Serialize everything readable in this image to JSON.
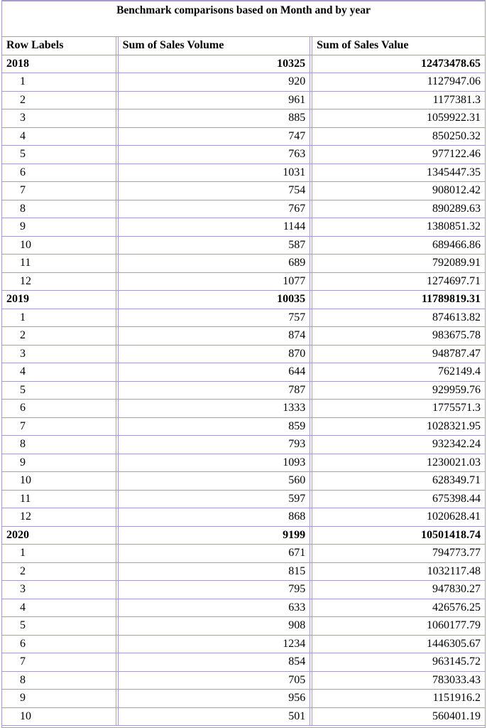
{
  "title": "Benchmark comparisons based on Month and by year",
  "headers": [
    "Row Labels",
    "Sum of Sales Volume",
    "Sum of Sales Value"
  ],
  "rows": [
    {
      "type": "year",
      "label": "2018",
      "volume": "10325",
      "value": "12473478.65"
    },
    {
      "type": "month",
      "label": "1",
      "volume": "920",
      "value": "1127947.06"
    },
    {
      "type": "month",
      "label": "2",
      "volume": "961",
      "value": "1177381.3"
    },
    {
      "type": "month",
      "label": "3",
      "volume": "885",
      "value": "1059922.31"
    },
    {
      "type": "month",
      "label": "4",
      "volume": "747",
      "value": "850250.32"
    },
    {
      "type": "month",
      "label": "5",
      "volume": "763",
      "value": "977122.46"
    },
    {
      "type": "month",
      "label": "6",
      "volume": "1031",
      "value": "1345447.35"
    },
    {
      "type": "month",
      "label": "7",
      "volume": "754",
      "value": "908012.42"
    },
    {
      "type": "month",
      "label": "8",
      "volume": "767",
      "value": "890289.63"
    },
    {
      "type": "month",
      "label": "9",
      "volume": "1144",
      "value": "1380851.32"
    },
    {
      "type": "month",
      "label": "10",
      "volume": "587",
      "value": "689466.86"
    },
    {
      "type": "month",
      "label": "11",
      "volume": "689",
      "value": "792089.91"
    },
    {
      "type": "month",
      "label": "12",
      "volume": "1077",
      "value": "1274697.71"
    },
    {
      "type": "year",
      "label": "2019",
      "volume": "10035",
      "value": "11789819.31"
    },
    {
      "type": "month",
      "label": "1",
      "volume": "757",
      "value": "874613.82"
    },
    {
      "type": "month",
      "label": "2",
      "volume": "874",
      "value": "983675.78"
    },
    {
      "type": "month",
      "label": "3",
      "volume": "870",
      "value": "948787.47"
    },
    {
      "type": "month",
      "label": "4",
      "volume": "644",
      "value": "762149.4"
    },
    {
      "type": "month",
      "label": "5",
      "volume": "787",
      "value": "929959.76"
    },
    {
      "type": "month",
      "label": "6",
      "volume": "1333",
      "value": "1775571.3"
    },
    {
      "type": "month",
      "label": "7",
      "volume": "859",
      "value": "1028321.95"
    },
    {
      "type": "month",
      "label": "8",
      "volume": "793",
      "value": "932342.24"
    },
    {
      "type": "month",
      "label": "9",
      "volume": "1093",
      "value": "1230021.03"
    },
    {
      "type": "month",
      "label": "10",
      "volume": "560",
      "value": "628349.71"
    },
    {
      "type": "month",
      "label": "11",
      "volume": "597",
      "value": "675398.44"
    },
    {
      "type": "month",
      "label": "12",
      "volume": "868",
      "value": "1020628.41"
    },
    {
      "type": "year",
      "label": "2020",
      "volume": "9199",
      "value": "10501418.74"
    },
    {
      "type": "month",
      "label": "1",
      "volume": "671",
      "value": "794773.77"
    },
    {
      "type": "month",
      "label": "2",
      "volume": "815",
      "value": "1032117.48"
    },
    {
      "type": "month",
      "label": "3",
      "volume": "795",
      "value": "947830.27"
    },
    {
      "type": "month",
      "label": "4",
      "volume": "633",
      "value": "426576.25"
    },
    {
      "type": "month",
      "label": "5",
      "volume": "908",
      "value": "1060177.79"
    },
    {
      "type": "month",
      "label": "6",
      "volume": "1234",
      "value": "1446305.67"
    },
    {
      "type": "month",
      "label": "7",
      "volume": "854",
      "value": "963145.72"
    },
    {
      "type": "month",
      "label": "8",
      "volume": "705",
      "value": "783033.43"
    },
    {
      "type": "month",
      "label": "9",
      "volume": "956",
      "value": "1151916.2"
    },
    {
      "type": "month",
      "label": "10",
      "volume": "501",
      "value": "560401.19"
    }
  ]
}
